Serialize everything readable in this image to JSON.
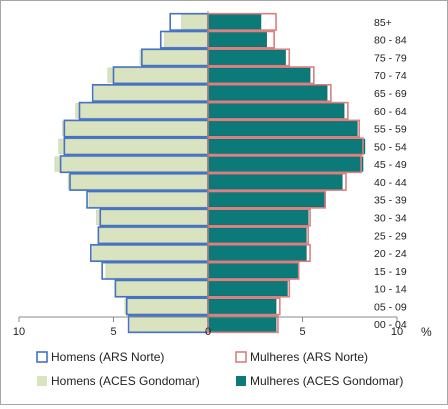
{
  "chart_data": {
    "type": "bar",
    "subtype": "population-pyramid",
    "unit_label": "%",
    "x_ticks": [
      "10",
      "5",
      "0",
      "5",
      "10"
    ],
    "xlim": [
      -10,
      10
    ],
    "grid": false,
    "legend_position": "bottom",
    "categories": [
      "85+",
      "80 - 84",
      "75 - 79",
      "70 - 74",
      "65 - 69",
      "60 - 64",
      "55 - 59",
      "50 - 54",
      "45 - 49",
      "40 - 44",
      "35 - 39",
      "30 - 34",
      "25 - 29",
      "20 - 24",
      "15 - 19",
      "10 - 14",
      "05 - 09",
      "00 - 04"
    ],
    "series": [
      {
        "name": "Homens (ARS Norte)",
        "side": "left",
        "style": "outline",
        "color": "#4472c4",
        "values": [
          2.0,
          2.5,
          3.5,
          5.0,
          6.1,
          6.8,
          7.6,
          7.6,
          7.8,
          7.3,
          6.4,
          5.7,
          5.8,
          6.2,
          5.6,
          4.9,
          4.3,
          4.2
        ]
      },
      {
        "name": "Mulheres (ARS Norte)",
        "side": "right",
        "style": "outline",
        "color": "#d98080",
        "values": [
          3.6,
          3.5,
          4.3,
          5.6,
          6.5,
          7.4,
          8.0,
          8.2,
          8.1,
          7.3,
          6.2,
          5.4,
          5.3,
          5.4,
          4.8,
          4.3,
          3.8,
          3.7
        ]
      },
      {
        "name": "Homens (ACES Gondomar)",
        "side": "left",
        "style": "fill",
        "color": "#d9e3bf",
        "values": [
          1.4,
          2.3,
          3.6,
          5.3,
          6.0,
          7.0,
          7.7,
          7.9,
          8.1,
          7.4,
          6.3,
          5.9,
          5.8,
          6.1,
          5.4,
          4.9,
          4.4,
          4.1
        ]
      },
      {
        "name": "Mulheres (ACES Gondomar)",
        "side": "right",
        "style": "fill",
        "color": "#0d7a7a",
        "values": [
          2.8,
          3.1,
          4.1,
          5.4,
          6.3,
          7.2,
          7.9,
          8.3,
          8.2,
          7.1,
          6.2,
          5.3,
          5.2,
          5.2,
          4.8,
          4.2,
          3.6,
          3.6
        ]
      }
    ]
  }
}
